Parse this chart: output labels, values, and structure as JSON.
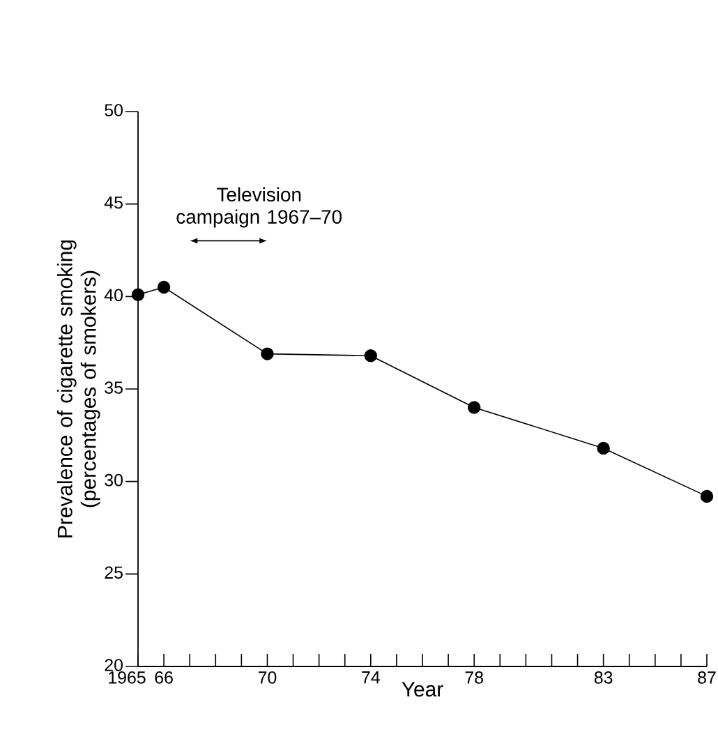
{
  "chart_data": {
    "type": "line",
    "xlabel": "Year",
    "ylabel": "Prevalence of cigarette smoking (percentages of smokers)",
    "x": [
      1965,
      1966,
      1970,
      1974,
      1978,
      1983,
      1987
    ],
    "values": [
      40.1,
      40.5,
      36.9,
      36.8,
      34.0,
      31.8,
      29.2
    ],
    "color": "#000000",
    "marker": "circle",
    "line_style": "solid",
    "xlim": [
      1965,
      1987
    ],
    "xticks": [
      {
        "value": 1965,
        "label": "1965"
      },
      {
        "value": 1966,
        "label": "66"
      },
      {
        "value": 1967,
        "label": null
      },
      {
        "value": 1968,
        "label": null
      },
      {
        "value": 1969,
        "label": null
      },
      {
        "value": 1970,
        "label": "70"
      },
      {
        "value": 1971,
        "label": null
      },
      {
        "value": 1972,
        "label": null
      },
      {
        "value": 1973,
        "label": null
      },
      {
        "value": 1974,
        "label": "74"
      },
      {
        "value": 1975,
        "label": null
      },
      {
        "value": 1976,
        "label": null
      },
      {
        "value": 1977,
        "label": null
      },
      {
        "value": 1978,
        "label": "78"
      },
      {
        "value": 1979,
        "label": null
      },
      {
        "value": 1980,
        "label": null
      },
      {
        "value": 1981,
        "label": null
      },
      {
        "value": 1982,
        "label": null
      },
      {
        "value": 1983,
        "label": "83"
      },
      {
        "value": 1984,
        "label": null
      },
      {
        "value": 1985,
        "label": null
      },
      {
        "value": 1986,
        "label": null
      },
      {
        "value": 1987,
        "label": "87"
      }
    ],
    "ylim": [
      20,
      50
    ],
    "yticks": [
      20,
      25,
      30,
      35,
      40,
      45,
      50
    ],
    "annotations": [
      "Television campaign 1967–70"
    ]
  }
}
